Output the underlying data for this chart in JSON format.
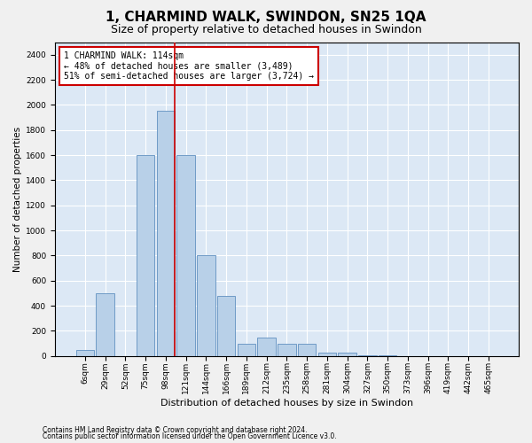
{
  "title": "1, CHARMIND WALK, SWINDON, SN25 1QA",
  "subtitle": "Size of property relative to detached houses in Swindon",
  "xlabel": "Distribution of detached houses by size in Swindon",
  "ylabel": "Number of detached properties",
  "bar_color": "#b8d0e8",
  "bar_edge_color": "#6090c0",
  "background_color": "#dce8f5",
  "fig_background": "#f0f0f0",
  "categories": [
    "6sqm",
    "29sqm",
    "52sqm",
    "75sqm",
    "98sqm",
    "121sqm",
    "144sqm",
    "166sqm",
    "189sqm",
    "212sqm",
    "235sqm",
    "258sqm",
    "281sqm",
    "304sqm",
    "327sqm",
    "350sqm",
    "373sqm",
    "396sqm",
    "419sqm",
    "442sqm",
    "465sqm"
  ],
  "values": [
    50,
    500,
    2,
    1600,
    1950,
    1600,
    800,
    480,
    100,
    150,
    100,
    100,
    25,
    25,
    5,
    5,
    0,
    0,
    0,
    0,
    0
  ],
  "ylim": [
    0,
    2500
  ],
  "yticks": [
    0,
    200,
    400,
    600,
    800,
    1000,
    1200,
    1400,
    1600,
    1800,
    2000,
    2200,
    2400
  ],
  "property_label": "1 CHARMIND WALK: 114sqm",
  "annotation_line1": "← 48% of detached houses are smaller (3,489)",
  "annotation_line2": "51% of semi-detached houses are larger (3,724) →",
  "vline_color": "#cc0000",
  "annotation_box_edge": "#cc0000",
  "footnote1": "Contains HM Land Registry data © Crown copyright and database right 2024.",
  "footnote2": "Contains public sector information licensed under the Open Government Licence v3.0.",
  "grid_color": "#ffffff",
  "title_fontsize": 11,
  "subtitle_fontsize": 9,
  "tick_fontsize": 6.5,
  "ylabel_fontsize": 7.5,
  "xlabel_fontsize": 8,
  "annotation_fontsize": 7,
  "footnote_fontsize": 5.5
}
